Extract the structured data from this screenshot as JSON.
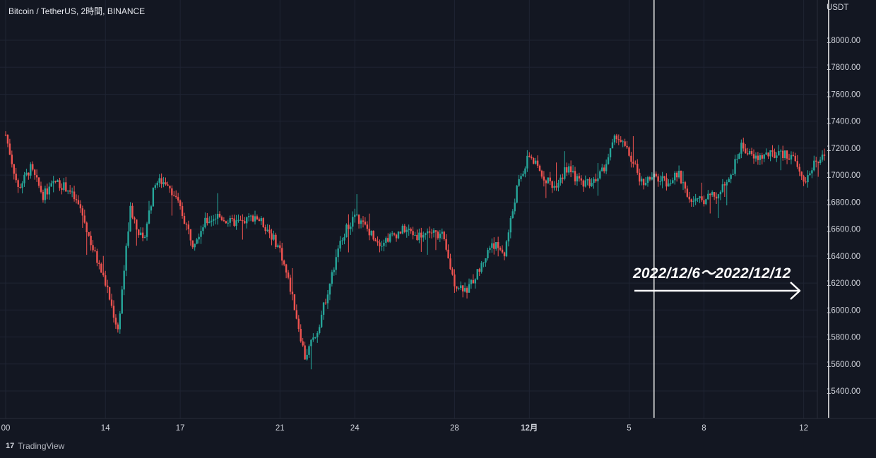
{
  "header": {
    "title": "Bitcoin / TetherUS, 2時間, BINANCE"
  },
  "axis": {
    "unit": "USDT"
  },
  "brand": {
    "logo_text": "17",
    "name": "TradingView"
  },
  "overlay": {
    "range_label": "2022/12/6～2022/12/12"
  },
  "colors": {
    "background": "#131722",
    "grid": "#1f2433",
    "up": "#26a69a",
    "down": "#ef5350",
    "text": "#d1d4dc",
    "marker_line": "#e8e8e8"
  },
  "chart_data": {
    "type": "candlestick",
    "title": "Bitcoin / TetherUS, 2時間, BINANCE",
    "y_unit": "USDT",
    "ylim": [
      15250,
      18300
    ],
    "y_ticks": [
      15400,
      15600,
      15800,
      16000,
      16200,
      16400,
      16600,
      16800,
      17000,
      17200,
      17400,
      17600,
      17800,
      18000
    ],
    "y_tick_labels": [
      "15400.00",
      "15600.00",
      "15800.00",
      "16000.00",
      "16200.00",
      "16400.00",
      "16600.00",
      "16800.00",
      "17000.00",
      "17200.00",
      "17400.00",
      "17600.00",
      "17800.00",
      "18000.00"
    ],
    "x_ticks": [
      {
        "label": "00",
        "day": 10
      },
      {
        "label": "14",
        "day": 14
      },
      {
        "label": "17",
        "day": 17
      },
      {
        "label": "21",
        "day": 21
      },
      {
        "label": "24",
        "day": 24
      },
      {
        "label": "28",
        "day": 28
      },
      {
        "label": "12月",
        "day": 31
      },
      {
        "label": "5",
        "day": 35
      },
      {
        "label": "8",
        "day": 38
      },
      {
        "label": "12",
        "day": 42
      }
    ],
    "x_range_days": [
      10,
      42.9
    ],
    "grid": true,
    "vertical_markers": [
      "2022/12/6",
      "2022/12/12"
    ],
    "marker_days": [
      36.0,
      43.0
    ],
    "close_path": [
      [
        10.0,
        17300
      ],
      [
        10.5,
        16900
      ],
      [
        11.0,
        17050
      ],
      [
        11.5,
        16850
      ],
      [
        12.0,
        16950
      ],
      [
        12.5,
        16900
      ],
      [
        13.0,
        16750
      ],
      [
        13.5,
        16450
      ],
      [
        14.0,
        16200
      ],
      [
        14.5,
        15850
      ],
      [
        15.0,
        16750
      ],
      [
        15.5,
        16500
      ],
      [
        16.0,
        16950
      ],
      [
        16.5,
        16950
      ],
      [
        17.0,
        16750
      ],
      [
        17.5,
        16500
      ],
      [
        18.0,
        16650
      ],
      [
        18.5,
        16700
      ],
      [
        19.0,
        16650
      ],
      [
        19.5,
        16650
      ],
      [
        20.0,
        16700
      ],
      [
        20.5,
        16600
      ],
      [
        21.0,
        16450
      ],
      [
        21.5,
        16100
      ],
      [
        22.0,
        15650
      ],
      [
        22.5,
        15850
      ],
      [
        23.0,
        16200
      ],
      [
        23.5,
        16550
      ],
      [
        24.0,
        16700
      ],
      [
        24.5,
        16600
      ],
      [
        25.0,
        16500
      ],
      [
        25.5,
        16550
      ],
      [
        26.0,
        16600
      ],
      [
        26.5,
        16550
      ],
      [
        27.0,
        16580
      ],
      [
        27.5,
        16550
      ],
      [
        28.0,
        16200
      ],
      [
        28.5,
        16150
      ],
      [
        29.0,
        16300
      ],
      [
        29.5,
        16500
      ],
      [
        30.0,
        16420
      ],
      [
        30.5,
        16900
      ],
      [
        31.0,
        17150
      ],
      [
        31.5,
        17000
      ],
      [
        32.0,
        16920
      ],
      [
        32.5,
        17050
      ],
      [
        33.0,
        16950
      ],
      [
        33.5,
        16950
      ],
      [
        34.0,
        17050
      ],
      [
        34.5,
        17300
      ],
      [
        35.0,
        17150
      ],
      [
        35.5,
        16950
      ],
      [
        36.0,
        16980
      ],
      [
        36.5,
        16950
      ],
      [
        37.0,
        17000
      ],
      [
        37.5,
        16800
      ],
      [
        38.0,
        16820
      ],
      [
        38.5,
        16850
      ],
      [
        39.0,
        16950
      ],
      [
        39.5,
        17220
      ],
      [
        40.0,
        17120
      ],
      [
        40.5,
        17150
      ],
      [
        41.0,
        17150
      ],
      [
        41.5,
        17150
      ],
      [
        42.0,
        16950
      ],
      [
        42.5,
        17100
      ],
      [
        42.9,
        17150
      ]
    ]
  }
}
